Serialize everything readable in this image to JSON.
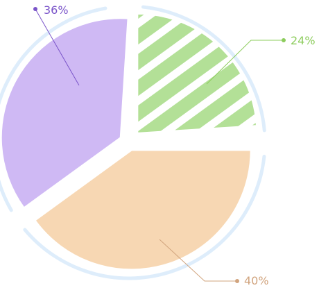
{
  "chart_data": {
    "type": "pie",
    "slices": [
      {
        "label": "24%",
        "value": 24,
        "color": "#b3e097",
        "pattern": "stripes",
        "label_color": "#8ccc5c"
      },
      {
        "label": "40%",
        "value": 40,
        "color": "#f7d7b3",
        "pattern": "solid",
        "label_color": "#d1a47e"
      },
      {
        "label": "36%",
        "value": 36,
        "color": "#cfb9f4",
        "pattern": "solid",
        "label_color": "#7a54c9"
      }
    ],
    "ring_color": "#deedfb",
    "legend": "none",
    "title": ""
  }
}
